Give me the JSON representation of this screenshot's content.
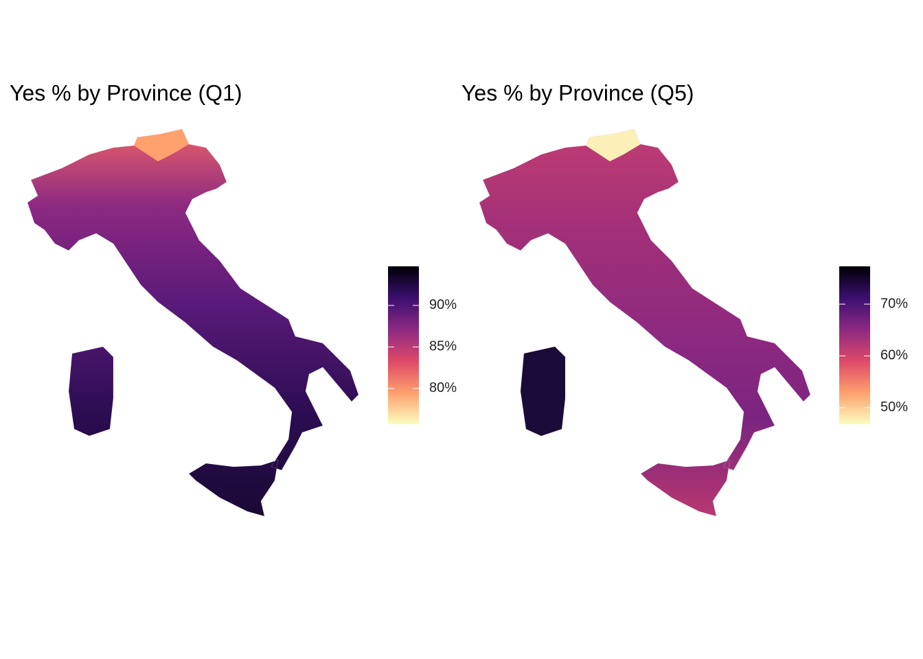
{
  "chart_data": [
    {
      "type": "choropleth",
      "title": "Yes % by Province (Q1)",
      "colorbar": {
        "lim": [
          75.7,
          94.7
        ],
        "ticks": [
          {
            "value": 80,
            "label": "80%"
          },
          {
            "value": 85,
            "label": "85%"
          },
          {
            "value": 90,
            "label": "90%"
          }
        ],
        "palette": [
          "#fcfdbf",
          "#fe9f6d",
          "#de4968",
          "#8c2981",
          "#3b0f70",
          "#000004"
        ]
      }
    },
    {
      "type": "choropleth",
      "title": "Yes % by Province (Q5)",
      "colorbar": {
        "lim": [
          46.8,
          77.3
        ],
        "ticks": [
          {
            "value": 50,
            "label": "50%"
          },
          {
            "value": 60,
            "label": "60%"
          },
          {
            "value": 70,
            "label": "70%"
          }
        ],
        "palette": [
          "#fcfdbf",
          "#fe9f6d",
          "#de4968",
          "#8c2981",
          "#3b0f70",
          "#000004"
        ]
      }
    }
  ]
}
